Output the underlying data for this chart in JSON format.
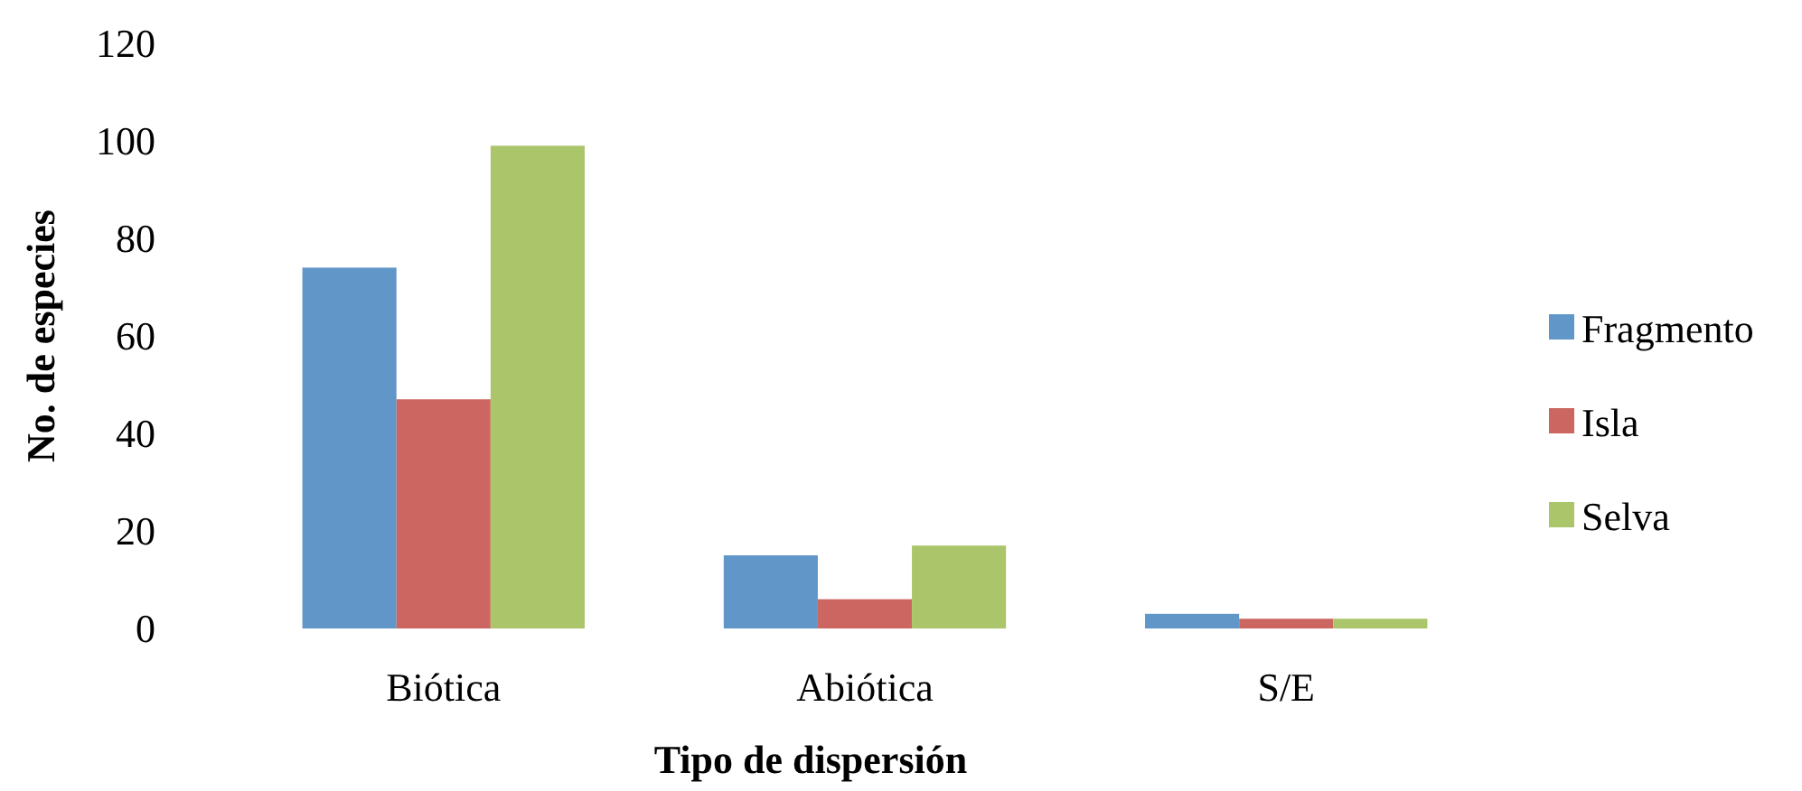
{
  "chart_data": {
    "type": "bar",
    "xlabel": "Tipo de dispersión",
    "ylabel": "No. de especies",
    "categories": [
      "Biótica",
      "Abiótica",
      "S/E"
    ],
    "series": [
      {
        "name": "Fragmento",
        "color": "#6096c8",
        "values": [
          74,
          15,
          3
        ]
      },
      {
        "name": "Isla",
        "color": "#cc6660",
        "values": [
          47,
          6,
          2
        ]
      },
      {
        "name": "Selva",
        "color": "#abc56a",
        "values": [
          99,
          17,
          2
        ]
      }
    ],
    "ylim": [
      0,
      120
    ],
    "yticks": [
      0,
      20,
      40,
      60,
      80,
      100,
      120
    ],
    "legend": "right"
  }
}
